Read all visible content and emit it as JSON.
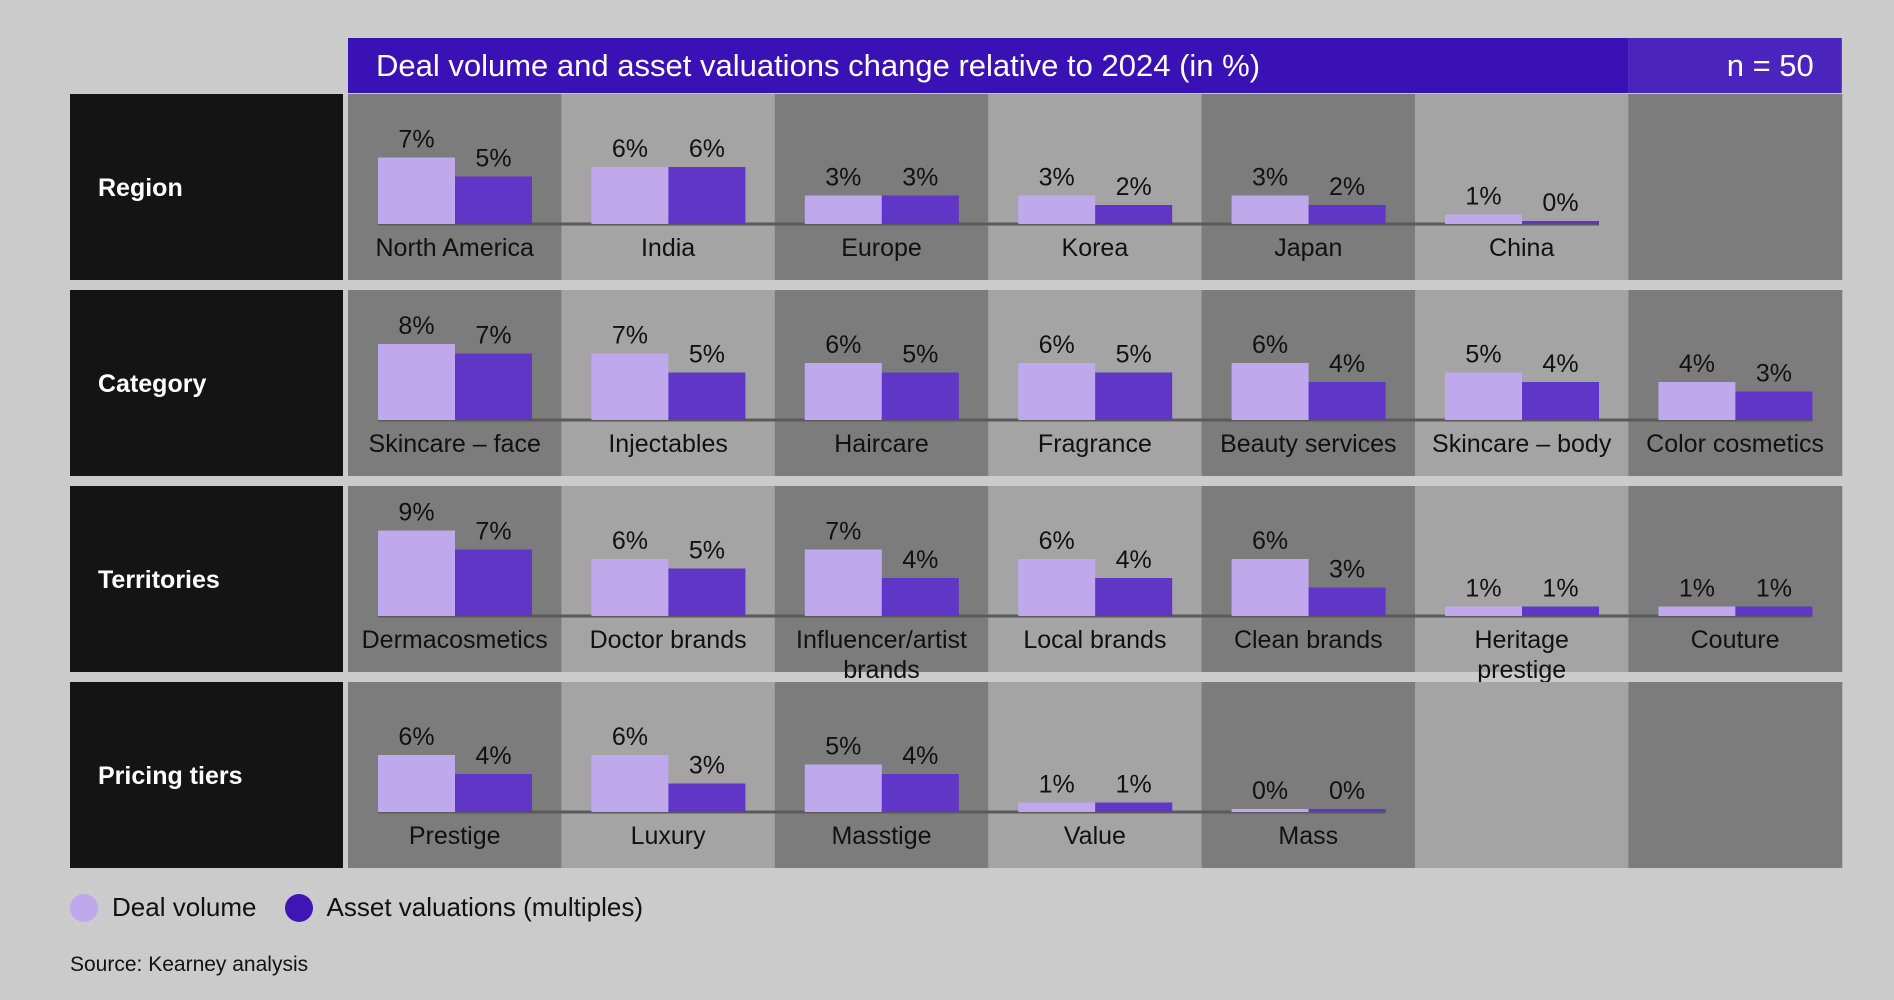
{
  "chart_data": {
    "type": "bar",
    "title": "Deal volume and asset valuations change relative to 2024 (in %)",
    "note": "n = 50",
    "legend_placement": "bottom-left",
    "series_names": [
      "Deal volume",
      "Asset valuations (multiples)"
    ],
    "colors": {
      "deal_volume": "#bfa8eb",
      "asset_valuations": "#6036c6",
      "legend_asset_dot": "#3d16b3",
      "header_bg": "#3a11b5",
      "header_note_bg": "#4b24bd",
      "row_label_bg": "#141414",
      "panel_dark": "#7c7c7c",
      "panel_light": "#a4a4a4",
      "page_bg": "#cbcbcb"
    },
    "ylim": [
      0,
      9
    ],
    "groups": [
      {
        "name": "Region",
        "items": [
          {
            "label": "North America",
            "deal": 7,
            "valuation": 5
          },
          {
            "label": "India",
            "deal": 6,
            "valuation": 6
          },
          {
            "label": "Europe",
            "deal": 3,
            "valuation": 3
          },
          {
            "label": "Korea",
            "deal": 3,
            "valuation": 2
          },
          {
            "label": "Japan",
            "deal": 3,
            "valuation": 2
          },
          {
            "label": "China",
            "deal": 1,
            "valuation": 0
          }
        ]
      },
      {
        "name": "Category",
        "items": [
          {
            "label": "Skincare – face",
            "deal": 8,
            "valuation": 7
          },
          {
            "label": "Injectables",
            "deal": 7,
            "valuation": 5
          },
          {
            "label": "Haircare",
            "deal": 6,
            "valuation": 5
          },
          {
            "label": "Fragrance",
            "deal": 6,
            "valuation": 5
          },
          {
            "label": "Beauty services",
            "deal": 6,
            "valuation": 4
          },
          {
            "label": "Skincare – body",
            "deal": 5,
            "valuation": 4
          },
          {
            "label": "Color cosmetics",
            "deal": 4,
            "valuation": 3
          }
        ]
      },
      {
        "name": "Territories",
        "items": [
          {
            "label": "Dermacosmetics",
            "deal": 9,
            "valuation": 7
          },
          {
            "label": "Doctor brands",
            "deal": 6,
            "valuation": 5
          },
          {
            "label": "Influencer/artist brands",
            "label_lines": [
              "Influencer/artist",
              "brands"
            ],
            "deal": 7,
            "valuation": 4
          },
          {
            "label": "Local brands",
            "deal": 6,
            "valuation": 4
          },
          {
            "label": "Clean brands",
            "deal": 6,
            "valuation": 3
          },
          {
            "label": "Heritage prestige",
            "label_lines": [
              "Heritage",
              "prestige"
            ],
            "deal": 1,
            "valuation": 1
          },
          {
            "label": "Couture",
            "deal": 1,
            "valuation": 1
          }
        ]
      },
      {
        "name": "Pricing tiers",
        "items": [
          {
            "label": "Prestige",
            "deal": 6,
            "valuation": 4
          },
          {
            "label": "Luxury",
            "deal": 6,
            "valuation": 3
          },
          {
            "label": "Masstige",
            "deal": 5,
            "valuation": 4
          },
          {
            "label": "Value",
            "deal": 1,
            "valuation": 1
          },
          {
            "label": "Mass",
            "deal": 0,
            "valuation": 0
          }
        ]
      }
    ]
  },
  "legend": {
    "deal_label": "Deal volume",
    "asset_label": "Asset valuations (multiples)"
  },
  "source": "Source: Kearney analysis"
}
